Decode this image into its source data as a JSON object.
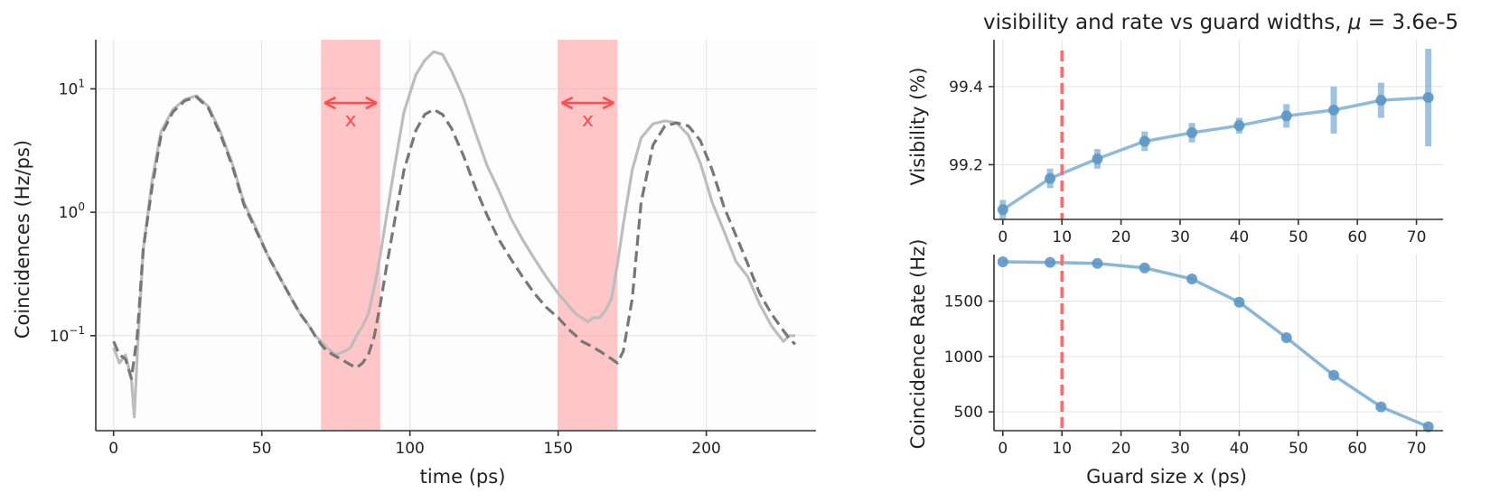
{
  "colors": {
    "light_series": "#bdbdbd",
    "dark_series": "#777777",
    "guard_band": "#ff9999",
    "arrow": "#ff4d4d",
    "marker_line": "#ff6b6b",
    "vis_series": "#7bafd4",
    "rate_series": "#7bafd4"
  },
  "chart_data": [
    {
      "type": "line",
      "title": "",
      "xlabel": "time (ps)",
      "ylabel": "Coincidences (Hz/ps)",
      "xlim": [
        -6,
        237
      ],
      "ylim": [
        0.017,
        25
      ],
      "y_scale": "log",
      "grid": true,
      "x_ticks": [
        0,
        50,
        100,
        150,
        200
      ],
      "x_tick_labels": [
        "0",
        "50",
        "100",
        "150",
        "200"
      ],
      "y_ticks": [
        0.1,
        1,
        10
      ],
      "y_tick_labels": [
        "10^{-1}",
        "10^{0}",
        "10^{1}"
      ],
      "shaded_regions": [
        {
          "x0": 70,
          "x1": 90,
          "label": "x"
        },
        {
          "x0": 150,
          "x1": 170,
          "label": "x"
        }
      ],
      "series": [
        {
          "style": "solid",
          "x": [
            0,
            2,
            4,
            6,
            7,
            8,
            10,
            13,
            16,
            20,
            24,
            28,
            32,
            36,
            40,
            44,
            48,
            52,
            56,
            60,
            63,
            66,
            68,
            70,
            72,
            75,
            78,
            80,
            82,
            84,
            86,
            88,
            90,
            92,
            95,
            98,
            102,
            105,
            108,
            111,
            114,
            118,
            122,
            126,
            130,
            134,
            138,
            142,
            146,
            150,
            154,
            156,
            158,
            160,
            162,
            164,
            166,
            168,
            170,
            172,
            175,
            178,
            182,
            186,
            190,
            194,
            198,
            202,
            206,
            210,
            214,
            218,
            222,
            226,
            228,
            230
          ],
          "y": [
            0.08,
            0.06,
            0.07,
            0.045,
            0.022,
            0.07,
            0.5,
            1.8,
            4.5,
            6.8,
            8.2,
            8.8,
            7.2,
            4.5,
            2.5,
            1.2,
            0.75,
            0.45,
            0.3,
            0.2,
            0.15,
            0.12,
            0.1,
            0.09,
            0.08,
            0.07,
            0.075,
            0.08,
            0.1,
            0.12,
            0.15,
            0.25,
            0.45,
            0.9,
            2.5,
            6.5,
            13,
            17,
            20,
            19,
            14,
            8.5,
            4.5,
            2.4,
            1.5,
            0.9,
            0.6,
            0.42,
            0.3,
            0.22,
            0.17,
            0.15,
            0.14,
            0.13,
            0.14,
            0.14,
            0.16,
            0.2,
            0.38,
            0.8,
            2.2,
            4,
            5.2,
            5.5,
            5.3,
            4.2,
            2.5,
            1.2,
            0.7,
            0.4,
            0.3,
            0.18,
            0.12,
            0.09,
            0.1,
            0.1
          ]
        },
        {
          "style": "dashed",
          "x": [
            0,
            2,
            4,
            6,
            8,
            10,
            13,
            16,
            20,
            24,
            28,
            32,
            36,
            40,
            44,
            48,
            52,
            56,
            60,
            63,
            66,
            68,
            70,
            72,
            75,
            78,
            80,
            82,
            84,
            86,
            88,
            90,
            92,
            95,
            98,
            102,
            105,
            108,
            111,
            114,
            118,
            122,
            126,
            130,
            134,
            138,
            142,
            146,
            150,
            154,
            156,
            158,
            160,
            162,
            164,
            166,
            168,
            170,
            172,
            175,
            178,
            182,
            186,
            190,
            194,
            198,
            202,
            206,
            210,
            214,
            218,
            222,
            226,
            228,
            230
          ],
          "y": [
            0.09,
            0.07,
            0.065,
            0.045,
            0.1,
            0.5,
            1.6,
            4.2,
            6.5,
            8,
            8.6,
            7,
            4.3,
            2.4,
            1.15,
            0.72,
            0.45,
            0.3,
            0.2,
            0.15,
            0.12,
            0.1,
            0.085,
            0.075,
            0.068,
            0.062,
            0.058,
            0.055,
            0.06,
            0.07,
            0.1,
            0.18,
            0.35,
            0.9,
            2.2,
            4.6,
            6.2,
            6.8,
            6.2,
            4.8,
            2.9,
            1.6,
            0.95,
            0.6,
            0.42,
            0.3,
            0.22,
            0.17,
            0.14,
            0.11,
            0.1,
            0.09,
            0.085,
            0.08,
            0.075,
            0.07,
            0.065,
            0.06,
            0.075,
            0.2,
            1.2,
            3.5,
            5,
            5.3,
            5,
            3.8,
            2.2,
            1.1,
            0.65,
            0.38,
            0.22,
            0.15,
            0.11,
            0.095,
            0.085
          ]
        }
      ]
    },
    {
      "type": "line",
      "title": "visibility and rate vs guard widths, μ = 3.6e-5",
      "xlabel": "",
      "ylabel": "Visibility (%)",
      "xlim": [
        -1.5,
        74.5
      ],
      "ylim": [
        99.06,
        99.52
      ],
      "grid": true,
      "x_ticks": [
        0,
        10,
        20,
        30,
        40,
        50,
        60,
        70
      ],
      "x_tick_labels": [
        "0",
        "10",
        "20",
        "30",
        "40",
        "50",
        "60",
        "70"
      ],
      "y_ticks": [
        99.2,
        99.4
      ],
      "y_tick_labels": [
        "99.2",
        "99.4"
      ],
      "vertical_line": 10,
      "series": [
        {
          "x": [
            0,
            8,
            16,
            24,
            32,
            40,
            48,
            56,
            64,
            72
          ],
          "y": [
            99.085,
            99.165,
            99.215,
            99.26,
            99.282,
            99.3,
            99.325,
            99.34,
            99.365,
            99.372
          ],
          "err": [
            0.025,
            0.025,
            0.025,
            0.025,
            0.025,
            0.02,
            0.03,
            0.06,
            0.045,
            0.125
          ]
        }
      ]
    },
    {
      "type": "line",
      "title": "",
      "xlabel": "Guard size x (ps)",
      "ylabel": "Coincidence Rate (Hz)",
      "xlim": [
        -1.5,
        74.5
      ],
      "ylim": [
        330,
        1920
      ],
      "grid": true,
      "x_ticks": [
        0,
        10,
        20,
        30,
        40,
        50,
        60,
        70
      ],
      "x_tick_labels": [
        "0",
        "10",
        "20",
        "30",
        "40",
        "50",
        "60",
        "70"
      ],
      "y_ticks": [
        500,
        1000,
        1500
      ],
      "y_tick_labels": [
        "500",
        "1000",
        "1500"
      ],
      "vertical_line": 10,
      "series": [
        {
          "x": [
            0,
            8,
            16,
            24,
            32,
            40,
            48,
            56,
            64,
            72
          ],
          "y": [
            1855,
            1850,
            1840,
            1800,
            1700,
            1490,
            1170,
            830,
            545,
            365
          ]
        }
      ]
    }
  ]
}
